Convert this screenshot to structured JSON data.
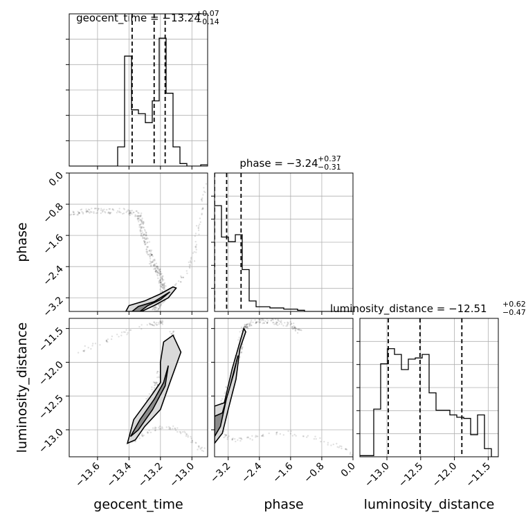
{
  "chart_data": {
    "type": "corner",
    "parameters": [
      "geocent_time",
      "phase",
      "luminosity_distance"
    ],
    "titles": {
      "geocent_time": {
        "label": "geocent_time",
        "median": "−13.24",
        "plus": "+0.07",
        "minus": "−0.14"
      },
      "phase": {
        "label": "phase",
        "median": "−3.24",
        "plus": "+0.37",
        "minus": "−0.31"
      },
      "luminosity_distance": {
        "label": "luminosity_distance",
        "median": "−12.51",
        "plus": "+0.62",
        "minus": "−0.47"
      }
    },
    "axis_labels": {
      "x": [
        "geocent_time",
        "phase",
        "luminosity_distance"
      ],
      "y": [
        "phase",
        "luminosity_distance"
      ]
    },
    "ranges": {
      "geocent_time": [
        -13.78,
        -12.9
      ],
      "phase": [
        -3.55,
        0.0
      ],
      "luminosity_distance": [
        -13.4,
        -11.35
      ]
    },
    "ticks": {
      "geocent_time": {
        "values": [
          -13.6,
          -13.4,
          -13.2,
          -13.0
        ],
        "labels": [
          "−13.6",
          "−13.4",
          "−13.2",
          "−13.0"
        ]
      },
      "phase": {
        "values": [
          -3.2,
          -2.4,
          -1.6,
          -0.8,
          0.0
        ],
        "labels": [
          "−3.2",
          "−2.4",
          "−1.6",
          "−0.8",
          "0.0"
        ]
      },
      "luminosity_distance": {
        "values": [
          -13.0,
          -12.5,
          -12.0,
          -11.5
        ],
        "labels": [
          "−13.0",
          "−12.5",
          "−12.0",
          "−11.5"
        ]
      }
    },
    "quantiles": {
      "geocent_time": [
        -13.38,
        -13.24,
        -13.17
      ],
      "phase": [
        -3.55,
        -3.24,
        -2.87
      ],
      "luminosity_distance": [
        -12.98,
        -12.51,
        -11.89
      ]
    },
    "histograms": {
      "geocent_time": {
        "bins": [
          -13.78,
          -13.736,
          -13.692,
          -13.648,
          -13.604,
          -13.56,
          -13.516,
          -13.472,
          -13.428,
          -13.384,
          -13.34,
          -13.296,
          -13.252,
          -13.208,
          -13.164,
          -13.12,
          -13.076,
          -13.032,
          -12.988,
          -12.944,
          -12.9
        ],
        "counts": [
          0,
          0,
          0,
          0,
          0,
          0,
          0,
          0.15,
          0.86,
          0.44,
          0.41,
          0.34,
          0.51,
          1.0,
          0.57,
          0.15,
          0.02,
          0,
          0,
          0.01
        ]
      },
      "phase": {
        "bins": [
          -3.55,
          -3.3725,
          -3.195,
          -3.0175,
          -2.84,
          -2.6625,
          -2.485,
          -2.3075,
          -2.13,
          -1.9525,
          -1.775,
          -1.5975,
          -1.42,
          -1.2425,
          -1.065,
          -0.8875,
          -0.71,
          -0.5325,
          -0.355,
          -0.1775,
          0.0
        ],
        "counts": [
          0.91,
          0.64,
          0.6,
          0.66,
          0.36,
          0.09,
          0.04,
          0.04,
          0.03,
          0.03,
          0.02,
          0.02,
          0.01,
          0,
          0,
          0,
          0,
          0,
          0,
          0
        ]
      },
      "luminosity_distance": {
        "bins": [
          -13.4,
          -13.2975,
          -13.195,
          -13.0925,
          -12.99,
          -12.8875,
          -12.785,
          -12.6825,
          -12.58,
          -12.4775,
          -12.375,
          -12.2725,
          -12.17,
          -12.0675,
          -11.965,
          -11.8625,
          -11.76,
          -11.6575,
          -11.555,
          -11.4525,
          -11.35
        ],
        "counts": [
          0.01,
          0.01,
          0.41,
          0.8,
          0.93,
          0.88,
          0.75,
          0.84,
          0.85,
          0.88,
          0.55,
          0.4,
          0.4,
          0.36,
          0.34,
          0.33,
          0.19,
          0.36,
          0.07,
          0
        ]
      }
    },
    "scatter": {
      "phase_vs_geocent_time": {
        "path_x": [
          -13.78,
          -13.66,
          -13.56,
          -13.42,
          -13.34,
          -13.32,
          -13.31,
          -13.29,
          -13.27,
          -13.25,
          -13.22,
          -13.2,
          -13.19,
          -13.18,
          -13.18,
          -13.21,
          -13.24,
          -13.22
        ],
        "path_y": [
          -1.05,
          -0.95,
          -0.98,
          -0.98,
          -1.05,
          -1.25,
          -1.55,
          -1.75,
          -2.05,
          -2.3,
          -2.5,
          -2.65,
          -2.85,
          -3.0,
          -3.2,
          -3.35,
          -3.45,
          -3.55
        ],
        "branch_x": [
          -13.4,
          -13.33,
          -13.26,
          -13.2,
          -13.14,
          -13.09,
          -13.04,
          -13.0,
          -12.98,
          -12.97,
          -12.95,
          -12.93,
          -12.92
        ],
        "branch_y": [
          -3.55,
          -3.45,
          -3.35,
          -3.22,
          -3.05,
          -2.8,
          -2.55,
          -2.3,
          -2.0,
          -1.6,
          -1.2,
          -0.7,
          -0.3
        ],
        "contour_outer": [
          [
            -13.42,
            -3.55
          ],
          [
            -13.4,
            -3.4
          ],
          [
            -13.3,
            -3.28
          ],
          [
            -13.2,
            -3.1
          ],
          [
            -13.12,
            -2.92
          ],
          [
            -13.1,
            -2.95
          ],
          [
            -13.15,
            -3.2
          ],
          [
            -13.24,
            -3.4
          ],
          [
            -13.32,
            -3.55
          ]
        ],
        "contour_inner": [
          [
            -13.38,
            -3.55
          ],
          [
            -13.34,
            -3.42
          ],
          [
            -13.24,
            -3.3
          ],
          [
            -13.16,
            -3.1
          ],
          [
            -13.14,
            -3.05
          ],
          [
            -13.2,
            -3.25
          ],
          [
            -13.28,
            -3.4
          ],
          [
            -13.33,
            -3.55
          ]
        ]
      },
      "luminosity_distance_vs_geocent_time": {
        "path_x": [
          -13.39,
          -13.35,
          -13.31,
          -13.27,
          -13.23,
          -13.2,
          -13.17,
          -13.14,
          -13.12
        ],
        "path_y": [
          -13.15,
          -12.95,
          -12.75,
          -12.55,
          -12.35,
          -12.15,
          -11.95,
          -11.75,
          -11.55
        ],
        "top_arc_x": [
          -13.78,
          -13.66,
          -13.54,
          -13.44,
          -13.34,
          -13.26,
          -13.22,
          -13.2,
          -13.18
        ],
        "top_arc_y": [
          -11.9,
          -11.78,
          -11.68,
          -11.58,
          -11.48,
          -11.44,
          -11.42,
          -11.42,
          -11.4
        ],
        "bottom_arc_x": [
          -13.39,
          -13.33,
          -13.27,
          -13.21,
          -13.15,
          -13.1,
          -13.05,
          -13.0,
          -12.96,
          -12.93
        ],
        "bottom_arc_y": [
          -13.2,
          -13.1,
          -13.02,
          -12.98,
          -12.96,
          -12.98,
          -13.05,
          -13.15,
          -13.25,
          -13.3
        ],
        "contour_outer": [
          [
            -13.41,
            -13.2
          ],
          [
            -13.37,
            -12.85
          ],
          [
            -13.26,
            -12.5
          ],
          [
            -13.2,
            -12.3
          ],
          [
            -13.2,
            -12.0
          ],
          [
            -13.18,
            -11.7
          ],
          [
            -13.12,
            -11.6
          ],
          [
            -13.07,
            -11.85
          ],
          [
            -13.14,
            -12.3
          ],
          [
            -13.2,
            -12.7
          ],
          [
            -13.3,
            -12.95
          ],
          [
            -13.36,
            -13.15
          ]
        ],
        "contour_inner": [
          [
            -13.39,
            -13.1
          ],
          [
            -13.33,
            -12.85
          ],
          [
            -13.24,
            -12.55
          ],
          [
            -13.18,
            -12.3
          ],
          [
            -13.15,
            -12.05
          ],
          [
            -13.17,
            -12.35
          ],
          [
            -13.25,
            -12.7
          ],
          [
            -13.34,
            -13.0
          ]
        ]
      },
      "luminosity_distance_vs_phase": {
        "path_x": [
          -3.55,
          -3.4,
          -3.25,
          -3.1,
          -2.98,
          -2.9,
          -2.85,
          -2.7,
          -2.4,
          -2.0,
          -1.6,
          -1.3
        ],
        "path_y": [
          -12.95,
          -12.75,
          -12.5,
          -12.25,
          -12.0,
          -11.8,
          -11.55,
          -11.45,
          -11.38,
          -11.4,
          -11.45,
          -11.55
        ],
        "bottom_arc_x": [
          -3.55,
          -3.4,
          -3.25,
          -3.05,
          -2.8,
          -2.5,
          -2.1,
          -1.6,
          -1.1,
          -0.6,
          -0.2,
          0.0
        ],
        "bottom_arc_y": [
          -12.9,
          -13.0,
          -13.1,
          -13.15,
          -13.15,
          -13.1,
          -13.05,
          -13.05,
          -13.1,
          -13.2,
          -13.3,
          -13.35
        ],
        "contour_outer": [
          [
            -3.55,
            -13.2
          ],
          [
            -3.35,
            -13.05
          ],
          [
            -3.2,
            -12.7
          ],
          [
            -3.0,
            -12.25
          ],
          [
            -2.9,
            -11.8
          ],
          [
            -2.75,
            -11.55
          ],
          [
            -2.8,
            -11.5
          ],
          [
            -3.1,
            -12.1
          ],
          [
            -3.3,
            -12.6
          ],
          [
            -3.55,
            -12.65
          ]
        ],
        "contour_inner": [
          [
            -3.55,
            -13.1
          ],
          [
            -3.4,
            -12.95
          ],
          [
            -3.25,
            -12.55
          ],
          [
            -3.05,
            -12.15
          ],
          [
            -2.95,
            -11.9
          ],
          [
            -3.15,
            -12.35
          ],
          [
            -3.35,
            -12.75
          ],
          [
            -3.55,
            -12.8
          ]
        ]
      }
    },
    "grid": true
  }
}
